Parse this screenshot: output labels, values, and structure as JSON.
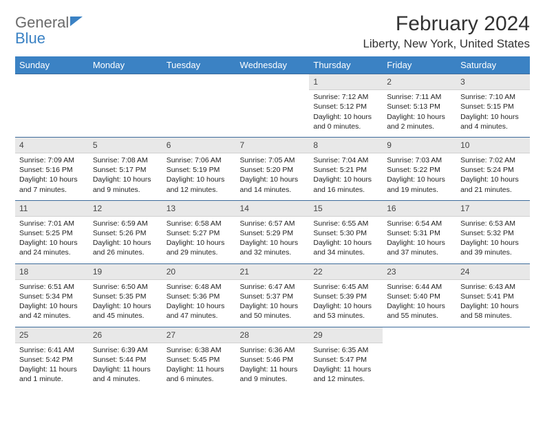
{
  "brand": {
    "part1": "General",
    "part2": "Blue"
  },
  "title": "February 2024",
  "location": "Liberty, New York, United States",
  "colors": {
    "header_bg": "#3b82c4",
    "header_text": "#ffffff",
    "daynum_bg": "#e8e8e8",
    "cell_border": "#3b6a9a",
    "body_text": "#222222",
    "title_text": "#333333",
    "logo_gray": "#6a6a6a",
    "logo_blue": "#3b82c4"
  },
  "days_of_week": [
    "Sunday",
    "Monday",
    "Tuesday",
    "Wednesday",
    "Thursday",
    "Friday",
    "Saturday"
  ],
  "weeks": [
    [
      {
        "blank": true
      },
      {
        "blank": true
      },
      {
        "blank": true
      },
      {
        "blank": true
      },
      {
        "n": "1",
        "sunrise": "Sunrise: 7:12 AM",
        "sunset": "Sunset: 5:12 PM",
        "daylight": "Daylight: 10 hours and 0 minutes."
      },
      {
        "n": "2",
        "sunrise": "Sunrise: 7:11 AM",
        "sunset": "Sunset: 5:13 PM",
        "daylight": "Daylight: 10 hours and 2 minutes."
      },
      {
        "n": "3",
        "sunrise": "Sunrise: 7:10 AM",
        "sunset": "Sunset: 5:15 PM",
        "daylight": "Daylight: 10 hours and 4 minutes."
      }
    ],
    [
      {
        "n": "4",
        "sunrise": "Sunrise: 7:09 AM",
        "sunset": "Sunset: 5:16 PM",
        "daylight": "Daylight: 10 hours and 7 minutes."
      },
      {
        "n": "5",
        "sunrise": "Sunrise: 7:08 AM",
        "sunset": "Sunset: 5:17 PM",
        "daylight": "Daylight: 10 hours and 9 minutes."
      },
      {
        "n": "6",
        "sunrise": "Sunrise: 7:06 AM",
        "sunset": "Sunset: 5:19 PM",
        "daylight": "Daylight: 10 hours and 12 minutes."
      },
      {
        "n": "7",
        "sunrise": "Sunrise: 7:05 AM",
        "sunset": "Sunset: 5:20 PM",
        "daylight": "Daylight: 10 hours and 14 minutes."
      },
      {
        "n": "8",
        "sunrise": "Sunrise: 7:04 AM",
        "sunset": "Sunset: 5:21 PM",
        "daylight": "Daylight: 10 hours and 16 minutes."
      },
      {
        "n": "9",
        "sunrise": "Sunrise: 7:03 AM",
        "sunset": "Sunset: 5:22 PM",
        "daylight": "Daylight: 10 hours and 19 minutes."
      },
      {
        "n": "10",
        "sunrise": "Sunrise: 7:02 AM",
        "sunset": "Sunset: 5:24 PM",
        "daylight": "Daylight: 10 hours and 21 minutes."
      }
    ],
    [
      {
        "n": "11",
        "sunrise": "Sunrise: 7:01 AM",
        "sunset": "Sunset: 5:25 PM",
        "daylight": "Daylight: 10 hours and 24 minutes."
      },
      {
        "n": "12",
        "sunrise": "Sunrise: 6:59 AM",
        "sunset": "Sunset: 5:26 PM",
        "daylight": "Daylight: 10 hours and 26 minutes."
      },
      {
        "n": "13",
        "sunrise": "Sunrise: 6:58 AM",
        "sunset": "Sunset: 5:27 PM",
        "daylight": "Daylight: 10 hours and 29 minutes."
      },
      {
        "n": "14",
        "sunrise": "Sunrise: 6:57 AM",
        "sunset": "Sunset: 5:29 PM",
        "daylight": "Daylight: 10 hours and 32 minutes."
      },
      {
        "n": "15",
        "sunrise": "Sunrise: 6:55 AM",
        "sunset": "Sunset: 5:30 PM",
        "daylight": "Daylight: 10 hours and 34 minutes."
      },
      {
        "n": "16",
        "sunrise": "Sunrise: 6:54 AM",
        "sunset": "Sunset: 5:31 PM",
        "daylight": "Daylight: 10 hours and 37 minutes."
      },
      {
        "n": "17",
        "sunrise": "Sunrise: 6:53 AM",
        "sunset": "Sunset: 5:32 PM",
        "daylight": "Daylight: 10 hours and 39 minutes."
      }
    ],
    [
      {
        "n": "18",
        "sunrise": "Sunrise: 6:51 AM",
        "sunset": "Sunset: 5:34 PM",
        "daylight": "Daylight: 10 hours and 42 minutes."
      },
      {
        "n": "19",
        "sunrise": "Sunrise: 6:50 AM",
        "sunset": "Sunset: 5:35 PM",
        "daylight": "Daylight: 10 hours and 45 minutes."
      },
      {
        "n": "20",
        "sunrise": "Sunrise: 6:48 AM",
        "sunset": "Sunset: 5:36 PM",
        "daylight": "Daylight: 10 hours and 47 minutes."
      },
      {
        "n": "21",
        "sunrise": "Sunrise: 6:47 AM",
        "sunset": "Sunset: 5:37 PM",
        "daylight": "Daylight: 10 hours and 50 minutes."
      },
      {
        "n": "22",
        "sunrise": "Sunrise: 6:45 AM",
        "sunset": "Sunset: 5:39 PM",
        "daylight": "Daylight: 10 hours and 53 minutes."
      },
      {
        "n": "23",
        "sunrise": "Sunrise: 6:44 AM",
        "sunset": "Sunset: 5:40 PM",
        "daylight": "Daylight: 10 hours and 55 minutes."
      },
      {
        "n": "24",
        "sunrise": "Sunrise: 6:43 AM",
        "sunset": "Sunset: 5:41 PM",
        "daylight": "Daylight: 10 hours and 58 minutes."
      }
    ],
    [
      {
        "n": "25",
        "sunrise": "Sunrise: 6:41 AM",
        "sunset": "Sunset: 5:42 PM",
        "daylight": "Daylight: 11 hours and 1 minute."
      },
      {
        "n": "26",
        "sunrise": "Sunrise: 6:39 AM",
        "sunset": "Sunset: 5:44 PM",
        "daylight": "Daylight: 11 hours and 4 minutes."
      },
      {
        "n": "27",
        "sunrise": "Sunrise: 6:38 AM",
        "sunset": "Sunset: 5:45 PM",
        "daylight": "Daylight: 11 hours and 6 minutes."
      },
      {
        "n": "28",
        "sunrise": "Sunrise: 6:36 AM",
        "sunset": "Sunset: 5:46 PM",
        "daylight": "Daylight: 11 hours and 9 minutes."
      },
      {
        "n": "29",
        "sunrise": "Sunrise: 6:35 AM",
        "sunset": "Sunset: 5:47 PM",
        "daylight": "Daylight: 11 hours and 12 minutes."
      },
      {
        "blank": true
      },
      {
        "blank": true
      }
    ]
  ]
}
